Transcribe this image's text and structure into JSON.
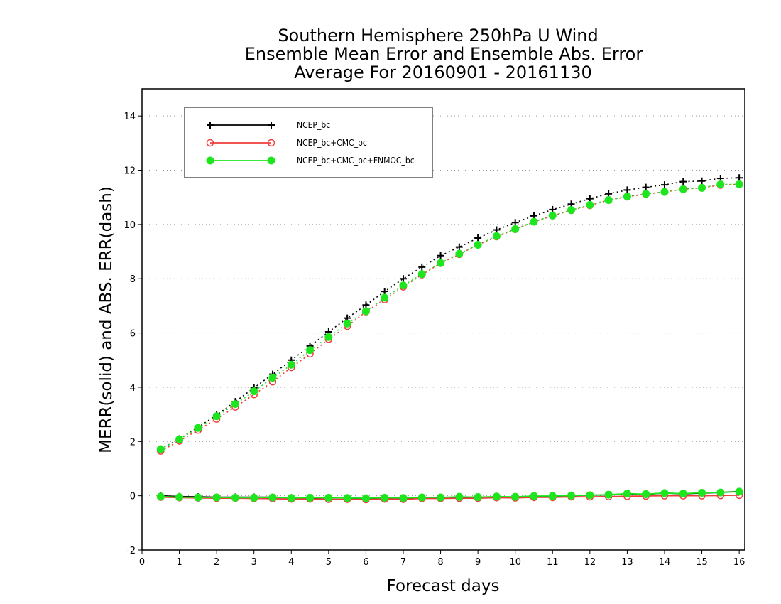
{
  "chart_data": {
    "type": "line",
    "title_lines": [
      "Southern Hemisphere 250hPa U Wind",
      "Ensemble Mean Error and Ensemble Abs. Error",
      "Average For 20160901 - 20161130"
    ],
    "xlabel": "Forecast days",
    "ylabel": "MERR(solid) and ABS. ERR(dash)",
    "xlim": [
      0,
      16.15
    ],
    "ylim": [
      -2,
      15
    ],
    "xticks": [
      0,
      1,
      2,
      3,
      4,
      5,
      6,
      7,
      8,
      9,
      10,
      11,
      12,
      13,
      14,
      15,
      16
    ],
    "yticks": [
      -2,
      0,
      2,
      4,
      6,
      8,
      10,
      12,
      14
    ],
    "grid": "horizontal dotted",
    "legend_position": "top-left",
    "x": [
      0.5,
      1,
      1.5,
      2,
      2.5,
      3,
      3.5,
      4,
      4.5,
      5,
      5.5,
      6,
      6.5,
      7,
      7.5,
      8,
      8.5,
      9,
      9.5,
      10,
      10.5,
      11,
      11.5,
      12,
      12.5,
      13,
      13.5,
      14,
      14.5,
      15,
      15.5,
      16
    ],
    "series": [
      {
        "name": "NCEP_bc",
        "color": "#000000",
        "marker": "plus",
        "abs_err": [
          1.72,
          2.1,
          2.52,
          2.98,
          3.47,
          3.98,
          4.48,
          5.0,
          5.52,
          6.04,
          6.55,
          7.03,
          7.53,
          8.0,
          8.43,
          8.85,
          9.17,
          9.5,
          9.8,
          10.07,
          10.32,
          10.55,
          10.75,
          10.95,
          11.13,
          11.27,
          11.37,
          11.46,
          11.58,
          11.6,
          11.7,
          11.72
        ],
        "mean_err": [
          0.0,
          -0.03,
          -0.04,
          -0.05,
          -0.05,
          -0.05,
          -0.05,
          -0.07,
          -0.08,
          -0.07,
          -0.08,
          -0.1,
          -0.08,
          -0.1,
          -0.06,
          -0.07,
          -0.05,
          -0.06,
          -0.04,
          -0.05,
          -0.02,
          -0.03,
          0.0,
          0.02,
          0.03,
          0.07,
          0.05,
          0.1,
          0.07,
          0.1,
          0.12,
          0.16
        ]
      },
      {
        "name": "NCEP_bc+CMC_bc",
        "color": "#f03c3c",
        "marker": "open-circle",
        "abs_err": [
          1.65,
          2.02,
          2.42,
          2.83,
          3.27,
          3.73,
          4.2,
          4.73,
          5.23,
          5.77,
          6.25,
          6.78,
          7.23,
          7.7,
          8.15,
          8.57,
          8.9,
          9.25,
          9.55,
          9.82,
          10.1,
          10.32,
          10.52,
          10.7,
          10.9,
          11.02,
          11.12,
          11.2,
          11.3,
          11.35,
          11.45,
          11.48
        ],
        "mean_err": [
          -0.05,
          -0.07,
          -0.08,
          -0.09,
          -0.09,
          -0.1,
          -0.11,
          -0.12,
          -0.12,
          -0.13,
          -0.13,
          -0.14,
          -0.12,
          -0.13,
          -0.1,
          -0.1,
          -0.09,
          -0.09,
          -0.07,
          -0.08,
          -0.06,
          -0.06,
          -0.04,
          -0.04,
          -0.03,
          -0.02,
          -0.01,
          0.0,
          0.0,
          0.0,
          0.01,
          0.02
        ]
      },
      {
        "name": "NCEP_bc+CMC_bc+FNMOC_bc",
        "color": "#1ee61e",
        "marker": "filled-circle",
        "abs_err": [
          1.72,
          2.08,
          2.5,
          2.93,
          3.38,
          3.85,
          4.35,
          4.83,
          5.37,
          5.85,
          6.35,
          6.8,
          7.3,
          7.75,
          8.17,
          8.58,
          8.92,
          9.25,
          9.57,
          9.83,
          10.1,
          10.33,
          10.53,
          10.72,
          10.9,
          11.03,
          11.13,
          11.2,
          11.3,
          11.35,
          11.48,
          11.48
        ],
        "mean_err": [
          -0.03,
          -0.05,
          -0.06,
          -0.06,
          -0.07,
          -0.07,
          -0.06,
          -0.08,
          -0.07,
          -0.07,
          -0.08,
          -0.09,
          -0.07,
          -0.08,
          -0.06,
          -0.06,
          -0.04,
          -0.05,
          -0.03,
          -0.04,
          -0.01,
          -0.01,
          0.01,
          0.02,
          0.04,
          0.08,
          0.06,
          0.1,
          0.08,
          0.11,
          0.12,
          0.15
        ]
      }
    ]
  }
}
